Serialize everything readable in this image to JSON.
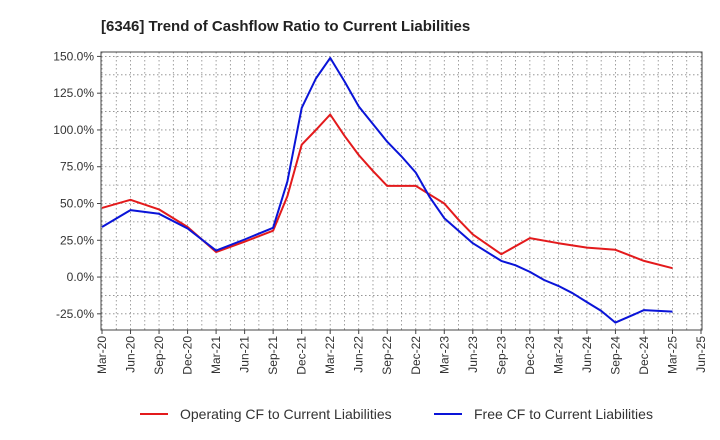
{
  "chart_data": {
    "type": "line",
    "title": "[6346]  Trend of Cashflow Ratio to Current Liabilities",
    "xlabel": "",
    "ylabel": "",
    "x_ticks": [
      "Mar-20",
      "Jun-20",
      "Sep-20",
      "Dec-20",
      "Mar-21",
      "Jun-21",
      "Sep-21",
      "Dec-21",
      "Mar-22",
      "Jun-22",
      "Sep-22",
      "Dec-22",
      "Mar-23",
      "Jun-23",
      "Sep-23",
      "Dec-23",
      "Mar-24",
      "Jun-24",
      "Sep-24",
      "Dec-24",
      "Mar-25",
      "Jun-25"
    ],
    "y_ticks": [
      150,
      125,
      100,
      75,
      50,
      25,
      0,
      -25
    ],
    "y_tick_labels": [
      "150.0%",
      "125.0%",
      "100.0%",
      "75.0%",
      "50.0%",
      "25.0%",
      "0.0%",
      "-25.0%"
    ],
    "ylim": [
      -36,
      153
    ],
    "grid": true,
    "legend_position": "bottom",
    "series": [
      {
        "name": "Operating CF to Current Liabilities",
        "color": "#e31a1c",
        "points": [
          [
            0,
            47
          ],
          [
            1,
            52.5
          ],
          [
            2,
            46
          ],
          [
            3,
            34
          ],
          [
            4,
            17
          ],
          [
            5,
            24
          ],
          [
            6,
            31.5
          ],
          [
            6.5,
            55
          ],
          [
            7,
            90
          ],
          [
            7.5,
            100
          ],
          [
            8,
            110.5
          ],
          [
            8.5,
            96
          ],
          [
            9,
            83
          ],
          [
            9.5,
            72
          ],
          [
            10,
            62
          ],
          [
            11,
            62
          ],
          [
            11.5,
            56
          ],
          [
            12,
            50
          ],
          [
            12.5,
            39
          ],
          [
            13,
            29
          ],
          [
            14,
            15.5
          ],
          [
            15,
            26.5
          ],
          [
            16,
            23
          ],
          [
            17,
            20
          ],
          [
            18,
            18.5
          ],
          [
            19,
            11
          ],
          [
            20,
            6
          ]
        ]
      },
      {
        "name": "Free CF to Current Liabilities",
        "color": "#0a14d8",
        "points": [
          [
            0,
            34
          ],
          [
            1,
            45.5
          ],
          [
            2,
            43
          ],
          [
            3,
            33
          ],
          [
            4,
            18
          ],
          [
            5,
            25.5
          ],
          [
            6,
            33.5
          ],
          [
            6.5,
            65
          ],
          [
            7,
            115
          ],
          [
            7.5,
            135
          ],
          [
            8,
            149
          ],
          [
            8.5,
            133
          ],
          [
            9,
            116
          ],
          [
            9.5,
            104
          ],
          [
            10,
            92
          ],
          [
            10.5,
            82
          ],
          [
            11,
            71
          ],
          [
            11.5,
            54
          ],
          [
            12,
            40
          ],
          [
            13,
            23
          ],
          [
            14,
            11
          ],
          [
            14.5,
            8
          ],
          [
            15,
            3.5
          ],
          [
            15.5,
            -2
          ],
          [
            16,
            -6
          ],
          [
            16.5,
            -11
          ],
          [
            17,
            -17
          ],
          [
            17.5,
            -23
          ],
          [
            18,
            -31
          ],
          [
            19,
            -22.5
          ],
          [
            20,
            -23.5
          ]
        ]
      }
    ]
  }
}
